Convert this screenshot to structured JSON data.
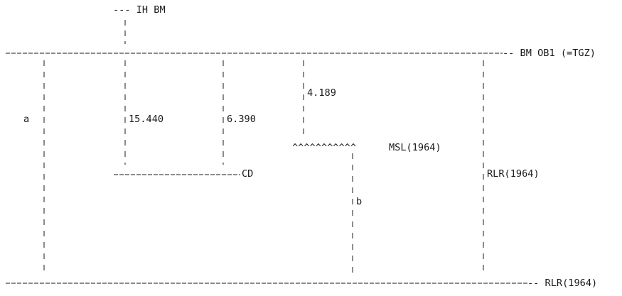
{
  "diagram": {
    "top_bm_label": "--- IH BM",
    "bm_ob1_label": "-- BM OB1 (=TGZ)",
    "rlr_bottom_label": "-- RLR(1964)",
    "label_a": "a",
    "label_b": "b",
    "value_15440": "15.440",
    "value_6390": "6.390",
    "value_4189": "4.189",
    "msl_wave": "^^^^^^^^^^^",
    "msl_label": "MSL(1964)",
    "cd_label": "CD",
    "rlr_side_label": "RLR(1964)"
  }
}
